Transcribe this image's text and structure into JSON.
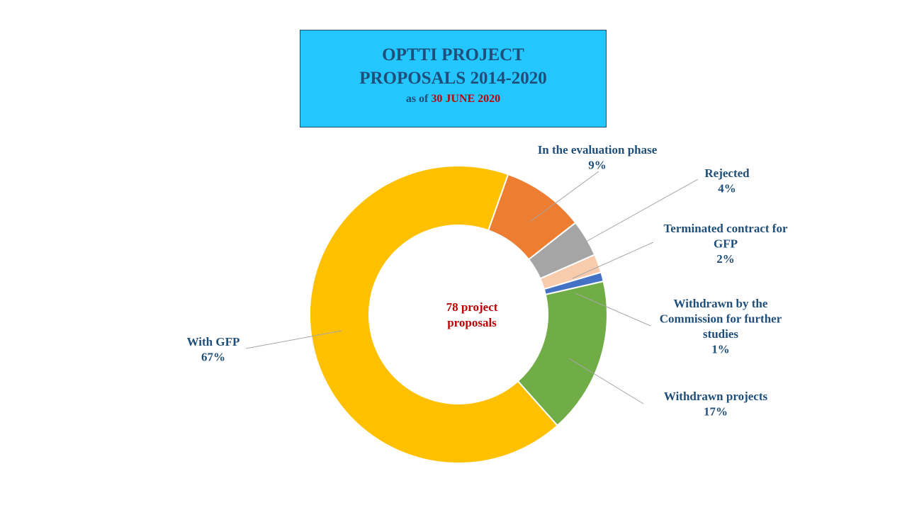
{
  "header": {
    "title_line1": "OPTTI PROJECT",
    "title_line2": "PROPOSALS 2014-2020",
    "subtitle_prefix": "as of",
    "subtitle_date": "30 JUNE 2020"
  },
  "chart_data": {
    "type": "pie",
    "style": "donut",
    "center_label": [
      "78 project",
      "proposals"
    ],
    "slices": [
      {
        "name": "In the evaluation phase",
        "value": 9,
        "label": "9%",
        "name_lines": [
          "In the evaluation phase"
        ],
        "color": "#ed7d31"
      },
      {
        "name": "Rejected",
        "value": 4,
        "label": "4%",
        "name_lines": [
          "Rejected"
        ],
        "color": "#a5a5a5"
      },
      {
        "name": "Terminated contract for GFP",
        "value": 2,
        "label": "2%",
        "name_lines": [
          "Terminated contract for",
          "GFP"
        ],
        "color": "#f8cbad"
      },
      {
        "name": "Withdrawn by the Commission for further studies",
        "value": 1,
        "label": "1%",
        "name_lines": [
          "Withdrawn by the",
          "Commission for further",
          "studies"
        ],
        "color": "#4472c4"
      },
      {
        "name": "Withdrawn projects",
        "value": 17,
        "label": "17%",
        "name_lines": [
          "Withdrawn projects"
        ],
        "color": "#70ad47"
      },
      {
        "name": "With GFP",
        "value": 67,
        "label": "67%",
        "name_lines": [
          "With GFP"
        ],
        "color": "#ffc000"
      }
    ]
  }
}
